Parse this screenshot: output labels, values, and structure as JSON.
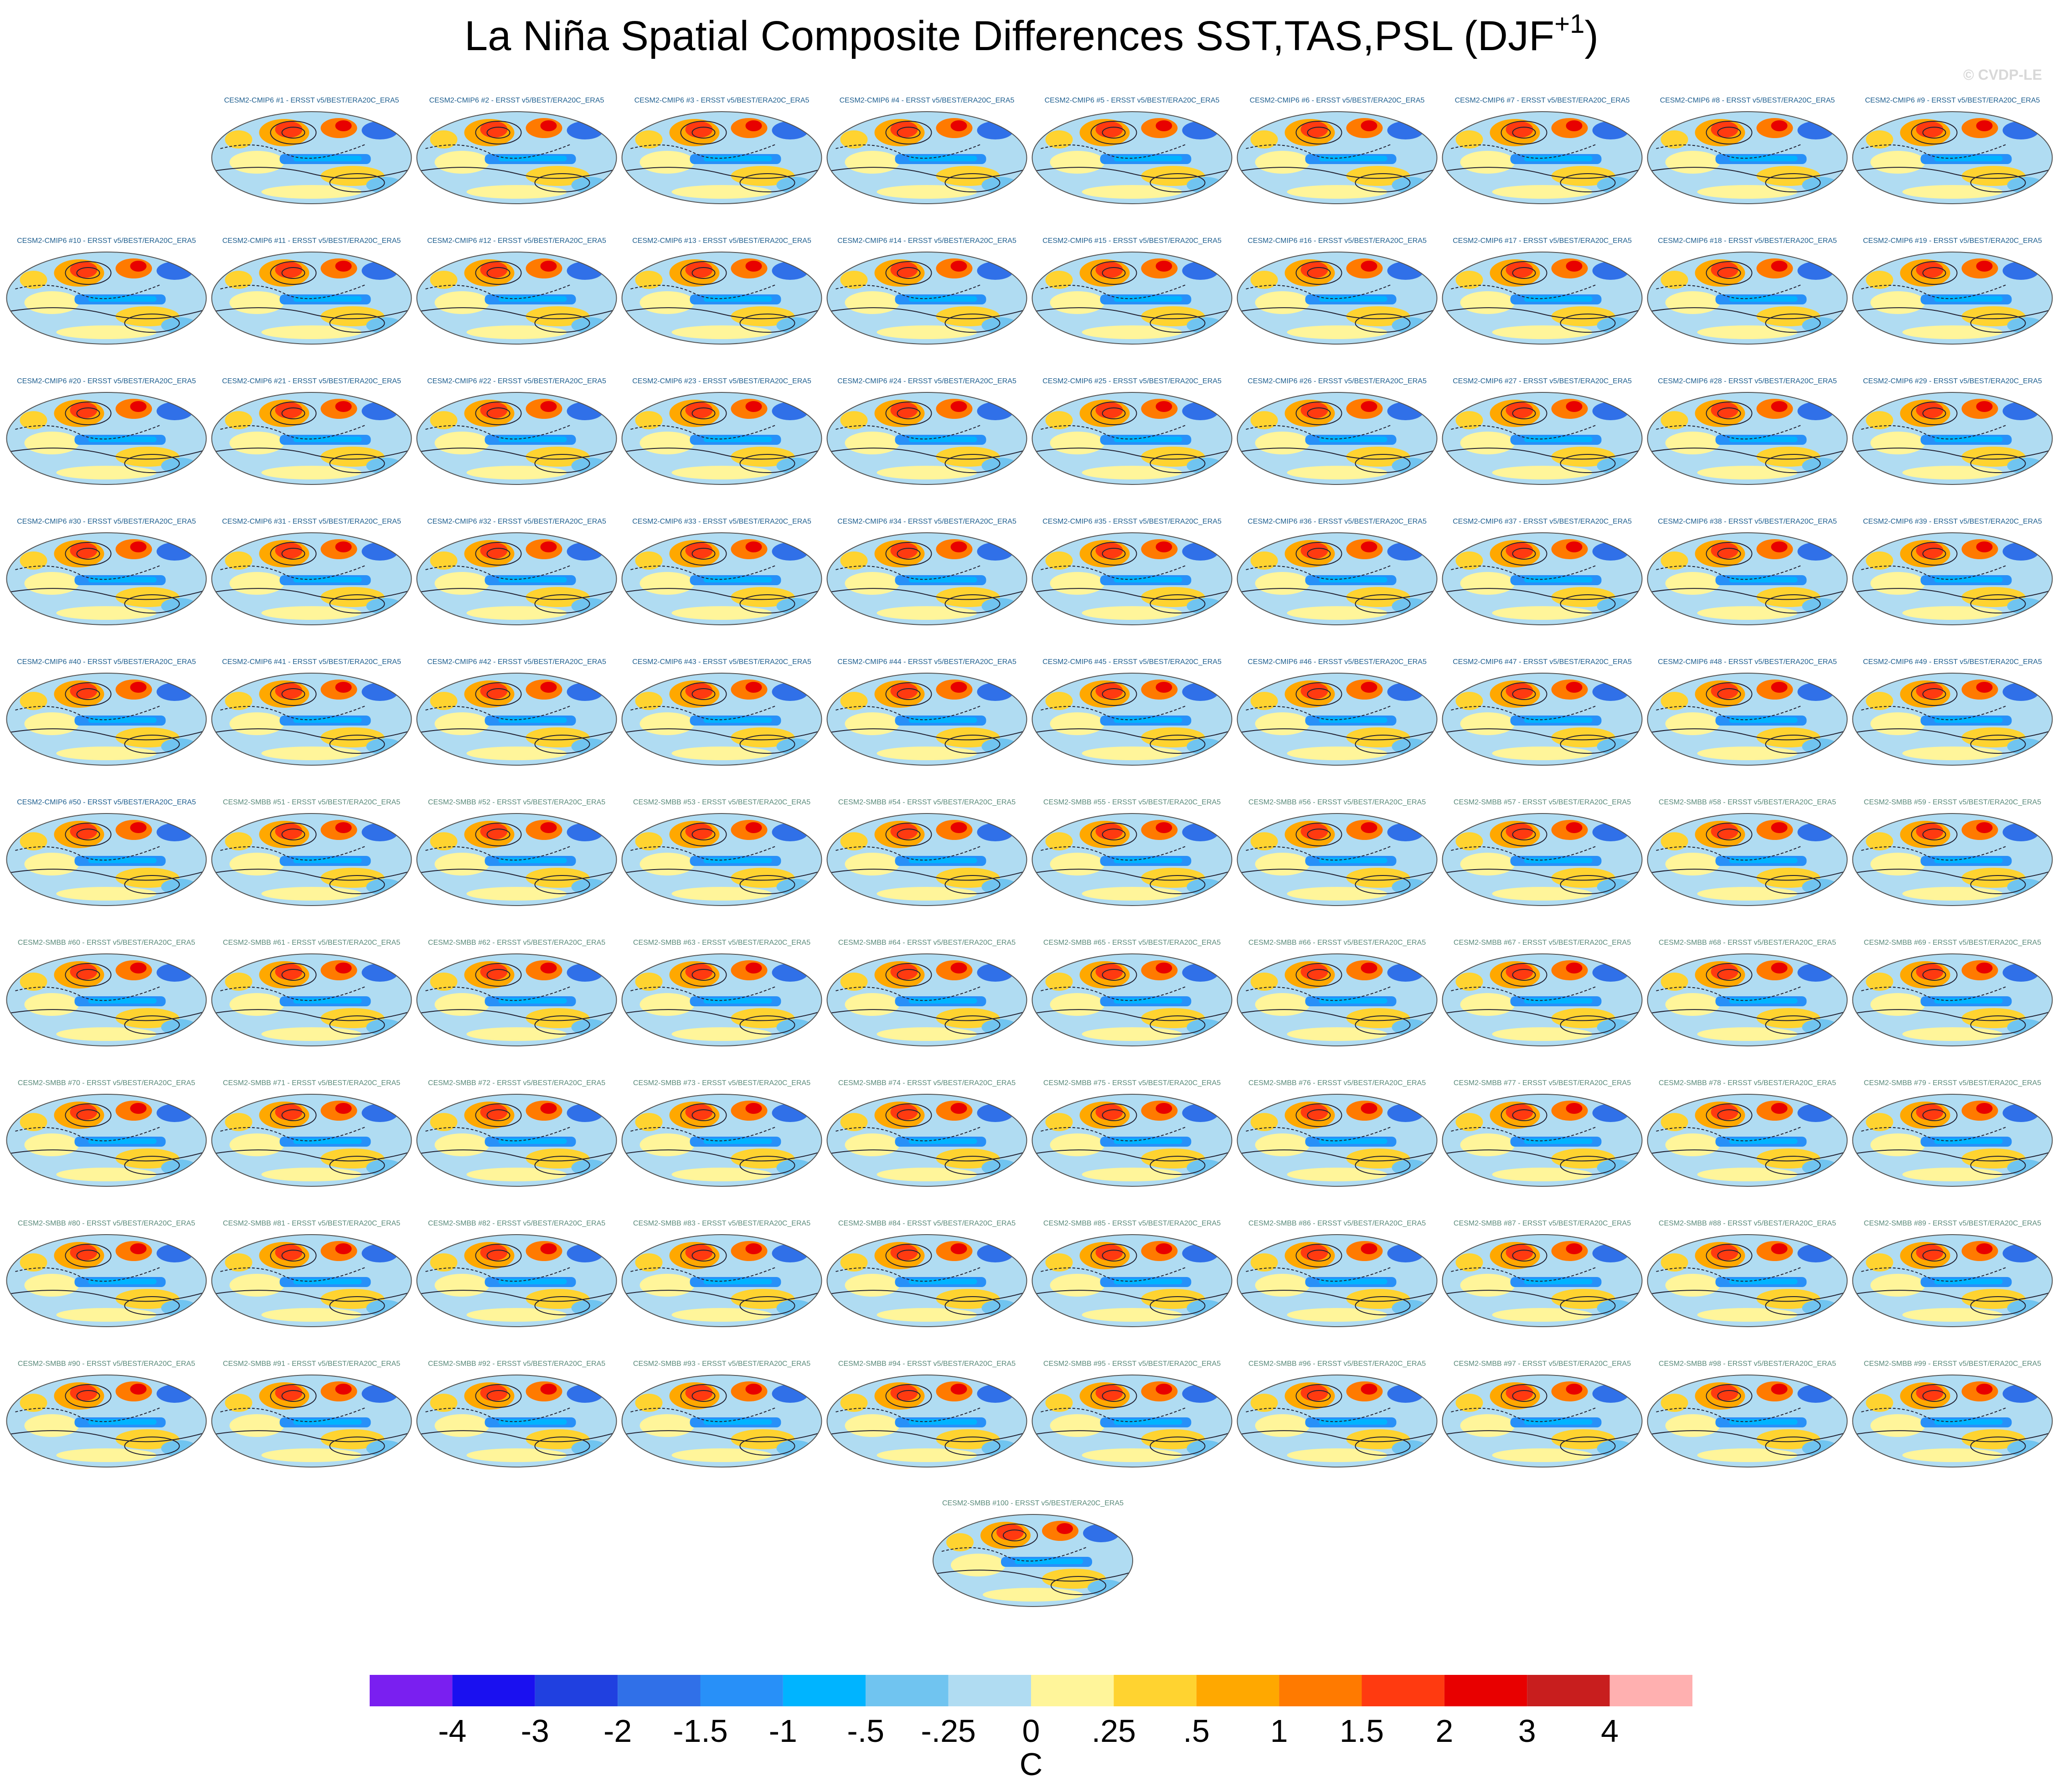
{
  "title": {
    "main": "La Niña Spatial Composite Differences SST,TAS,PSL (DJF",
    "superscript": "+1",
    "close": ")"
  },
  "credit": "© CVDP-LE",
  "panels": [
    "CESM2-CMIP6 #1 - ERSST v5/BEST/ERA20C_ERA5",
    "CESM2-CMIP6 #2 - ERSST v5/BEST/ERA20C_ERA5",
    "CESM2-CMIP6 #3 - ERSST v5/BEST/ERA20C_ERA5",
    "CESM2-CMIP6 #4 - ERSST v5/BEST/ERA20C_ERA5",
    "CESM2-CMIP6 #5 - ERSST v5/BEST/ERA20C_ERA5",
    "CESM2-CMIP6 #6 - ERSST v5/BEST/ERA20C_ERA5",
    "CESM2-CMIP6 #7 - ERSST v5/BEST/ERA20C_ERA5",
    "CESM2-CMIP6 #8 - ERSST v5/BEST/ERA20C_ERA5",
    "CESM2-CMIP6 #9 - ERSST v5/BEST/ERA20C_ERA5",
    "CESM2-CMIP6 #10 - ERSST v5/BEST/ERA20C_ERA5",
    "CESM2-CMIP6 #11 - ERSST v5/BEST/ERA20C_ERA5",
    "CESM2-CMIP6 #12 - ERSST v5/BEST/ERA20C_ERA5",
    "CESM2-CMIP6 #13 - ERSST v5/BEST/ERA20C_ERA5",
    "CESM2-CMIP6 #14 - ERSST v5/BEST/ERA20C_ERA5",
    "CESM2-CMIP6 #15 - ERSST v5/BEST/ERA20C_ERA5",
    "CESM2-CMIP6 #16 - ERSST v5/BEST/ERA20C_ERA5",
    "CESM2-CMIP6 #17 - ERSST v5/BEST/ERA20C_ERA5",
    "CESM2-CMIP6 #18 - ERSST v5/BEST/ERA20C_ERA5",
    "CESM2-CMIP6 #19 - ERSST v5/BEST/ERA20C_ERA5",
    "CESM2-CMIP6 #20 - ERSST v5/BEST/ERA20C_ERA5",
    "CESM2-CMIP6 #21 - ERSST v5/BEST/ERA20C_ERA5",
    "CESM2-CMIP6 #22 - ERSST v5/BEST/ERA20C_ERA5",
    "CESM2-CMIP6 #23 - ERSST v5/BEST/ERA20C_ERA5",
    "CESM2-CMIP6 #24 - ERSST v5/BEST/ERA20C_ERA5",
    "CESM2-CMIP6 #25 - ERSST v5/BEST/ERA20C_ERA5",
    "CESM2-CMIP6 #26 - ERSST v5/BEST/ERA20C_ERA5",
    "CESM2-CMIP6 #27 - ERSST v5/BEST/ERA20C_ERA5",
    "CESM2-CMIP6 #28 - ERSST v5/BEST/ERA20C_ERA5",
    "CESM2-CMIP6 #29 - ERSST v5/BEST/ERA20C_ERA5",
    "CESM2-CMIP6 #30 - ERSST v5/BEST/ERA20C_ERA5",
    "CESM2-CMIP6 #31 - ERSST v5/BEST/ERA20C_ERA5",
    "CESM2-CMIP6 #32 - ERSST v5/BEST/ERA20C_ERA5",
    "CESM2-CMIP6 #33 - ERSST v5/BEST/ERA20C_ERA5",
    "CESM2-CMIP6 #34 - ERSST v5/BEST/ERA20C_ERA5",
    "CESM2-CMIP6 #35 - ERSST v5/BEST/ERA20C_ERA5",
    "CESM2-CMIP6 #36 - ERSST v5/BEST/ERA20C_ERA5",
    "CESM2-CMIP6 #37 - ERSST v5/BEST/ERA20C_ERA5",
    "CESM2-CMIP6 #38 - ERSST v5/BEST/ERA20C_ERA5",
    "CESM2-CMIP6 #39 - ERSST v5/BEST/ERA20C_ERA5",
    "CESM2-CMIP6 #40 - ERSST v5/BEST/ERA20C_ERA5",
    "CESM2-CMIP6 #41 - ERSST v5/BEST/ERA20C_ERA5",
    "CESM2-CMIP6 #42 - ERSST v5/BEST/ERA20C_ERA5",
    "CESM2-CMIP6 #43 - ERSST v5/BEST/ERA20C_ERA5",
    "CESM2-CMIP6 #44 - ERSST v5/BEST/ERA20C_ERA5",
    "CESM2-CMIP6 #45 - ERSST v5/BEST/ERA20C_ERA5",
    "CESM2-CMIP6 #46 - ERSST v5/BEST/ERA20C_ERA5",
    "CESM2-CMIP6 #47 - ERSST v5/BEST/ERA20C_ERA5",
    "CESM2-CMIP6 #48 - ERSST v5/BEST/ERA20C_ERA5",
    "CESM2-CMIP6 #49 - ERSST v5/BEST/ERA20C_ERA5",
    "CESM2-CMIP6 #50 - ERSST v5/BEST/ERA20C_ERA5",
    "CESM2-SMBB #51 - ERSST v5/BEST/ERA20C_ERA5",
    "CESM2-SMBB #52 - ERSST v5/BEST/ERA20C_ERA5",
    "CESM2-SMBB #53 - ERSST v5/BEST/ERA20C_ERA5",
    "CESM2-SMBB #54 - ERSST v5/BEST/ERA20C_ERA5",
    "CESM2-SMBB #55 - ERSST v5/BEST/ERA20C_ERA5",
    "CESM2-SMBB #56 - ERSST v5/BEST/ERA20C_ERA5",
    "CESM2-SMBB #57 - ERSST v5/BEST/ERA20C_ERA5",
    "CESM2-SMBB #58 - ERSST v5/BEST/ERA20C_ERA5",
    "CESM2-SMBB #59 - ERSST v5/BEST/ERA20C_ERA5",
    "CESM2-SMBB #60 - ERSST v5/BEST/ERA20C_ERA5",
    "CESM2-SMBB #61 - ERSST v5/BEST/ERA20C_ERA5",
    "CESM2-SMBB #62 - ERSST v5/BEST/ERA20C_ERA5",
    "CESM2-SMBB #63 - ERSST v5/BEST/ERA20C_ERA5",
    "CESM2-SMBB #64 - ERSST v5/BEST/ERA20C_ERA5",
    "CESM2-SMBB #65 - ERSST v5/BEST/ERA20C_ERA5",
    "CESM2-SMBB #66 - ERSST v5/BEST/ERA20C_ERA5",
    "CESM2-SMBB #67 - ERSST v5/BEST/ERA20C_ERA5",
    "CESM2-SMBB #68 - ERSST v5/BEST/ERA20C_ERA5",
    "CESM2-SMBB #69 - ERSST v5/BEST/ERA20C_ERA5",
    "CESM2-SMBB #70 - ERSST v5/BEST/ERA20C_ERA5",
    "CESM2-SMBB #71 - ERSST v5/BEST/ERA20C_ERA5",
    "CESM2-SMBB #72 - ERSST v5/BEST/ERA20C_ERA5",
    "CESM2-SMBB #73 - ERSST v5/BEST/ERA20C_ERA5",
    "CESM2-SMBB #74 - ERSST v5/BEST/ERA20C_ERA5",
    "CESM2-SMBB #75 - ERSST v5/BEST/ERA20C_ERA5",
    "CESM2-SMBB #76 - ERSST v5/BEST/ERA20C_ERA5",
    "CESM2-SMBB #77 - ERSST v5/BEST/ERA20C_ERA5",
    "CESM2-SMBB #78 - ERSST v5/BEST/ERA20C_ERA5",
    "CESM2-SMBB #79 - ERSST v5/BEST/ERA20C_ERA5",
    "CESM2-SMBB #80 - ERSST v5/BEST/ERA20C_ERA5",
    "CESM2-SMBB #81 - ERSST v5/BEST/ERA20C_ERA5",
    "CESM2-SMBB #82 - ERSST v5/BEST/ERA20C_ERA5",
    "CESM2-SMBB #83 - ERSST v5/BEST/ERA20C_ERA5",
    "CESM2-SMBB #84 - ERSST v5/BEST/ERA20C_ERA5",
    "CESM2-SMBB #85 - ERSST v5/BEST/ERA20C_ERA5",
    "CESM2-SMBB #86 - ERSST v5/BEST/ERA20C_ERA5",
    "CESM2-SMBB #87 - ERSST v5/BEST/ERA20C_ERA5",
    "CESM2-SMBB #88 - ERSST v5/BEST/ERA20C_ERA5",
    "CESM2-SMBB #89 - ERSST v5/BEST/ERA20C_ERA5",
    "CESM2-SMBB #90 - ERSST v5/BEST/ERA20C_ERA5",
    "CESM2-SMBB #91 - ERSST v5/BEST/ERA20C_ERA5",
    "CESM2-SMBB #92 - ERSST v5/BEST/ERA20C_ERA5",
    "CESM2-SMBB #93 - ERSST v5/BEST/ERA20C_ERA5",
    "CESM2-SMBB #94 - ERSST v5/BEST/ERA20C_ERA5",
    "CESM2-SMBB #95 - ERSST v5/BEST/ERA20C_ERA5",
    "CESM2-SMBB #96 - ERSST v5/BEST/ERA20C_ERA5",
    "CESM2-SMBB #97 - ERSST v5/BEST/ERA20C_ERA5",
    "CESM2-SMBB #98 - ERSST v5/BEST/ERA20C_ERA5",
    "CESM2-SMBB #99 - ERSST v5/BEST/ERA20C_ERA5",
    "CESM2-SMBB #100 - ERSST v5/BEST/ERA20C_ERA5"
  ],
  "colorbar": {
    "colors": [
      "#7a1ff0",
      "#1a10f0",
      "#2040e0",
      "#3070e8",
      "#2890f8",
      "#00b4ff",
      "#70c4f0",
      "#b0dcf2",
      "#fff59a",
      "#ffd330",
      "#ffa800",
      "#ff7a00",
      "#ff3a10",
      "#e80000",
      "#c81e1e",
      "#ffb0b0"
    ],
    "levels": [
      -4,
      -3,
      -2,
      -1.5,
      -1,
      {
        "value": -0.5,
        "label": "-.5"
      },
      {
        "value": -0.25,
        "label": "-.25"
      },
      0,
      {
        "value": 0.25,
        "label": ".25"
      },
      {
        "value": 0.5,
        "label": ".5"
      },
      1,
      1.5,
      2,
      3,
      4
    ],
    "unit": "C"
  }
}
